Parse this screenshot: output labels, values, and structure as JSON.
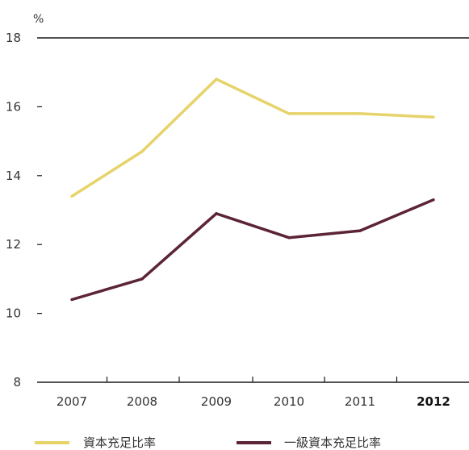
{
  "chart_data": {
    "type": "line",
    "title": "",
    "xlabel": "",
    "ylabel": "%",
    "categories": [
      "2007",
      "2008",
      "2009",
      "2010",
      "2011",
      "2012"
    ],
    "highlight_category": "2012",
    "ylim": [
      8,
      18
    ],
    "yticks": [
      8,
      10,
      12,
      14,
      16,
      18
    ],
    "grid": false,
    "legend_position": "bottom",
    "series": [
      {
        "name": "資本充足比率",
        "color": "#e6d36a",
        "values": [
          13.4,
          14.7,
          16.8,
          15.8,
          15.8,
          15.7
        ]
      },
      {
        "name": "一級資本充足比率",
        "color": "#5c2438",
        "values": [
          10.4,
          11.0,
          12.9,
          12.2,
          12.4,
          13.3
        ]
      }
    ]
  }
}
